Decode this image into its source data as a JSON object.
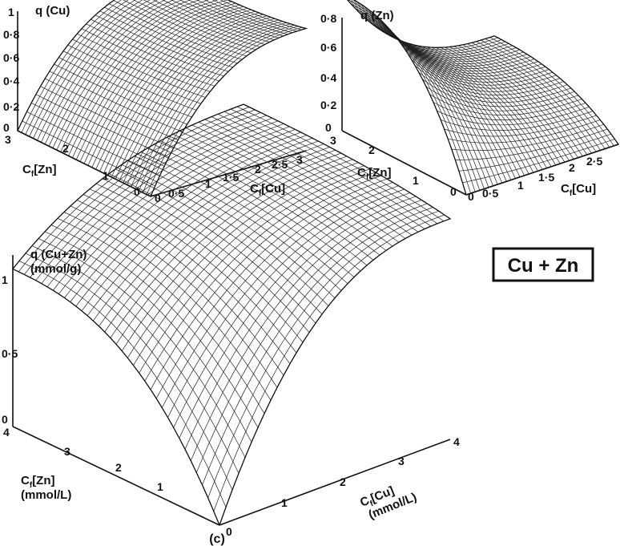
{
  "figure": {
    "caption": "(c)",
    "legend_box": "Cu + Zn"
  },
  "chart_data": [
    {
      "type": "surface",
      "panel": "top-left",
      "z_label": "q (Cu)",
      "x_label_main": "C",
      "x_label_sub": "f",
      "x_label_rest": "[Cu]",
      "y_label_main": "C",
      "y_label_sub": "f",
      "y_label_rest": "[Zn]",
      "z_ticks": [
        "0",
        "0·2",
        "0·4",
        "0·6",
        "0·8",
        "1"
      ],
      "x_ticks": [
        "0",
        "0·5",
        "1",
        "1·5",
        "2",
        "2·5",
        "3"
      ],
      "y_ticks": [
        "0",
        "1",
        "2",
        "3"
      ],
      "xlim": [
        0,
        3
      ],
      "ylim": [
        0,
        3
      ],
      "zlim": [
        0,
        1
      ],
      "surface_corners": {
        "cu0_zn0": 0.0,
        "cu3_zn0": 0.66,
        "cu0_zn3": 0.0,
        "cu3_zn3": 0.6
      }
    },
    {
      "type": "surface",
      "panel": "top-right",
      "z_label": "q (Zn)",
      "x_label_main": "C",
      "x_label_sub": "f",
      "x_label_rest": "[Cu]",
      "y_label_main": "C",
      "y_label_sub": "f",
      "y_label_rest": "[Zn]",
      "z_ticks": [
        "0",
        "0·2",
        "0·4",
        "0·6",
        "0·8"
      ],
      "x_ticks": [
        "0",
        "0·5",
        "1",
        "1·5",
        "2",
        "2·5"
      ],
      "y_ticks": [
        "0",
        "1",
        "2",
        "3"
      ],
      "xlim": [
        0,
        3
      ],
      "ylim": [
        0,
        3
      ],
      "zlim": [
        0,
        0.8
      ],
      "surface_corners": {
        "cu0_zn0": 0.0,
        "cu3_zn0": 0.0,
        "cu0_zn3": 0.62,
        "cu3_zn3": 0.2
      }
    },
    {
      "type": "surface",
      "panel": "bottom",
      "z_label": "q (Cu+Zn)",
      "z_unit": "(mmol/g)",
      "x_label_main": "C",
      "x_label_sub": "f",
      "x_label_rest": "[Cu]",
      "x_unit": "(mmol/L)",
      "y_label_main": "C",
      "y_label_sub": "f",
      "y_label_rest": "[Zn]",
      "y_unit": "(mmol/L)",
      "z_ticks": [
        "0",
        "0·5",
        "1"
      ],
      "x_ticks": [
        "0",
        "1",
        "2",
        "3",
        "4"
      ],
      "y_ticks": [
        "1",
        "2",
        "3",
        "4"
      ],
      "xlim": [
        0,
        4
      ],
      "ylim": [
        0,
        4
      ],
      "zlim": [
        0,
        1.2
      ],
      "surface_corners": {
        "cu0_zn0": 0.0,
        "cu4_zn0": 0.98,
        "cu0_zn4": 0.7,
        "cu4_zn4": 1.05
      }
    }
  ]
}
